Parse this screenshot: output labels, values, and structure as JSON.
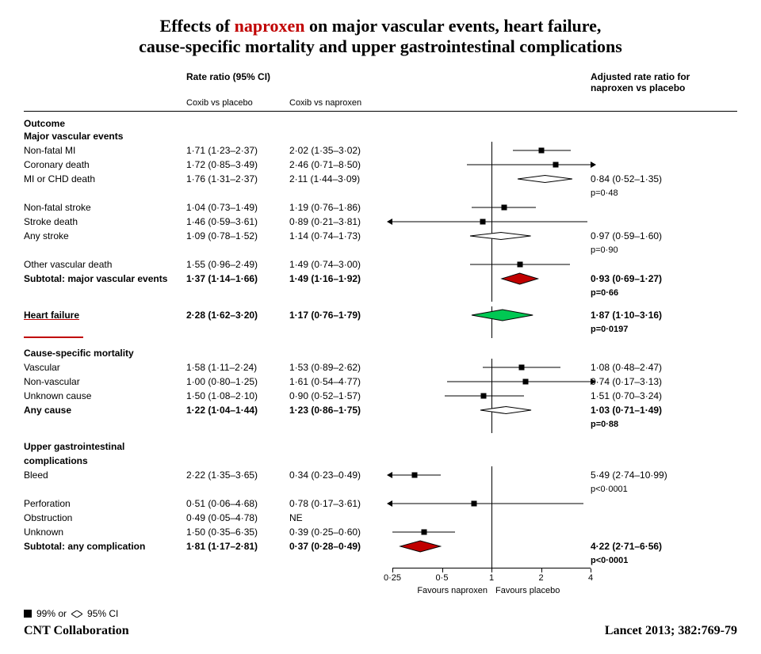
{
  "title": {
    "line1_pre": "Effects of ",
    "line1_hl": "naproxen",
    "line1_post": " on major vascular events, heart failure,",
    "line2": "cause-specific mortality and upper gastrointestinal complications"
  },
  "headers": {
    "rr_label": "Rate ratio (95% CI)",
    "col_cp": "Coxib vs placebo",
    "col_cn": "Coxib vs naproxen",
    "col_adj_l1": "Adjusted rate ratio for",
    "col_adj_l2": "naproxen vs placebo"
  },
  "section_outcome": "Outcome",
  "sections": [
    {
      "label": "Major vascular events",
      "rows": [
        {
          "name": "Non-fatal MI",
          "cp": "1·71 (1·23–2·37)",
          "cn": "2·02 (1·35–3·02)",
          "pt": 2.02,
          "lo": 1.35,
          "hi": 3.02,
          "shape": "sq",
          "adj": ""
        },
        {
          "name": "Coronary death",
          "cp": "1·72 (0·85–3·49)",
          "cn": "2·46 (0·71–8·50)",
          "pt": 2.46,
          "lo": 0.71,
          "hi": 8.5,
          "shape": "sq",
          "adj": "",
          "arrow_r": true,
          "arrow_l": false
        },
        {
          "name": "MI or CHD death",
          "cp": "1·76 (1·31–2·37)",
          "cn": "2·11 (1·44–3·09)",
          "pt": 2.11,
          "lo": 1.44,
          "hi": 3.09,
          "shape": "dia",
          "color": "#ffffff",
          "adj": "0·84 (0·52–1·35)",
          "adj2": "p=0·48"
        },
        {
          "name": "Non-fatal stroke",
          "cp": "1·04 (0·73–1·49)",
          "cn": "1·19 (0·76–1·86)",
          "pt": 1.19,
          "lo": 0.76,
          "hi": 1.86,
          "shape": "sq",
          "adj": ""
        },
        {
          "name": "Stroke death",
          "cp": "1·46 (0·59–3·61)",
          "cn": "0·89 (0·21–3·81)",
          "pt": 0.89,
          "lo": 0.21,
          "hi": 3.81,
          "shape": "sq",
          "adj": "",
          "arrow_l": true
        },
        {
          "name": "Any stroke",
          "cp": "1·09 (0·78–1·52)",
          "cn": "1·14 (0·74–1·73)",
          "pt": 1.14,
          "lo": 0.74,
          "hi": 1.73,
          "shape": "dia",
          "color": "#ffffff",
          "adj": "0·97 (0·59–1·60)",
          "adj2": "p=0·90"
        },
        {
          "name": "Other vascular death",
          "cp": "1·55 (0·96–2·49)",
          "cn": "1·49 (0·74–3·00)",
          "pt": 1.49,
          "lo": 0.74,
          "hi": 3.0,
          "shape": "sq",
          "adj": ""
        },
        {
          "name": "Subtotal: major vascular events",
          "cp": "1·37 (1·14–1·66)",
          "cn": "1·49 (1·16–1·92)",
          "pt": 1.49,
          "lo": 1.16,
          "hi": 1.92,
          "shape": "dia",
          "color": "#c00000",
          "bold": true,
          "adj": "0·93 (0·69–1·27)",
          "adj2": "p=0·66",
          "big": true
        }
      ]
    },
    {
      "label": "Heart failure",
      "single": true,
      "underline_red": true,
      "rows": [
        {
          "name": "Heart failure",
          "cp": "2·28 (1·62–3·20)",
          "cn": "1·17 (0·76–1·79)",
          "pt": 1.17,
          "lo": 0.76,
          "hi": 1.79,
          "shape": "dia",
          "color": "#00c853",
          "bold": true,
          "adj": "1·87 (1·10–3·16)",
          "adj2": "p=0·0197",
          "big": true
        }
      ]
    },
    {
      "label": "Cause-specific mortality",
      "rows": [
        {
          "name": "Vascular",
          "cp": "1·58 (1·11–2·24)",
          "cn": "1·53 (0·89–2·62)",
          "pt": 1.53,
          "lo": 0.89,
          "hi": 2.62,
          "shape": "sq",
          "adj": "1·08 (0·48–2·47)"
        },
        {
          "name": "Non-vascular",
          "cp": "1·00 (0·80–1·25)",
          "cn": "1·61 (0·54–4·77)",
          "pt": 1.61,
          "lo": 0.54,
          "hi": 4.77,
          "shape": "sq",
          "adj": "0·74 (0·17–3·13)",
          "arrow_l": false
        },
        {
          "name": "Unknown cause",
          "cp": "1·50 (1·08–2·10)",
          "cn": "0·90 (0·52–1·57)",
          "pt": 0.9,
          "lo": 0.52,
          "hi": 1.57,
          "shape": "sq",
          "adj": "1·51 (0·70–3·24)"
        },
        {
          "name": "Any cause",
          "cp": "1·22 (1·04–1·44)",
          "cn": "1·23 (0·86–1·75)",
          "pt": 1.23,
          "lo": 0.86,
          "hi": 1.75,
          "shape": "dia",
          "color": "#ffffff",
          "bold": true,
          "adj": "1·03 (0·71–1·49)",
          "adj2": "p=0·88"
        }
      ]
    },
    {
      "label": "Upper gastrointestinal complications",
      "rows": [
        {
          "name": "Bleed",
          "cp": "2·22 (1·35–3·65)",
          "cn": "0·34 (0·23–0·49)",
          "pt": 0.34,
          "lo": 0.23,
          "hi": 0.49,
          "shape": "sq",
          "adj": "5·49 (2·74–10·99)",
          "adj2": "p<0·0001",
          "arrow_l": true
        },
        {
          "name": "Perforation",
          "cp": "0·51 (0·06–4·68)",
          "cn": "0·78 (0·17–3·61)",
          "pt": 0.78,
          "lo": 0.17,
          "hi": 3.61,
          "shape": "sq",
          "adj": "",
          "arrow_l": true
        },
        {
          "name": "Obstruction",
          "cp": "0·49 (0·05–4·78)",
          "cn": "NE",
          "shape": "none",
          "adj": ""
        },
        {
          "name": "Unknown",
          "cp": "1·50 (0·35–6·35)",
          "cn": "0·39 (0·25–0·60)",
          "pt": 0.39,
          "lo": 0.25,
          "hi": 0.6,
          "shape": "sq",
          "adj": ""
        },
        {
          "name": "Subtotal: any complication",
          "cp": "1·81 (1·17–2·81)",
          "cn": "0·37 (0·28–0·49)",
          "pt": 0.37,
          "lo": 0.28,
          "hi": 0.49,
          "shape": "dia",
          "color": "#c00000",
          "bold": true,
          "adj": "4·22 (2·71–6·56)",
          "adj2": "p<0·0001",
          "big": true
        }
      ]
    }
  ],
  "axis": {
    "ticks": [
      0.25,
      0.5,
      1,
      2,
      4
    ],
    "tick_labels": [
      "0·25",
      "0·5",
      "1",
      "2",
      "4"
    ],
    "min": 0.25,
    "max": 4,
    "left_label": "Favours naproxen",
    "right_label": "Favours placebo"
  },
  "legend": {
    "sq": "99% or",
    "dia": "95% CI"
  },
  "footer": {
    "left": "CNT Collaboration",
    "right": "Lancet 2013; 382:769-79"
  },
  "colors": {
    "red": "#c00000",
    "green": "#00c853",
    "border": "#000000"
  }
}
